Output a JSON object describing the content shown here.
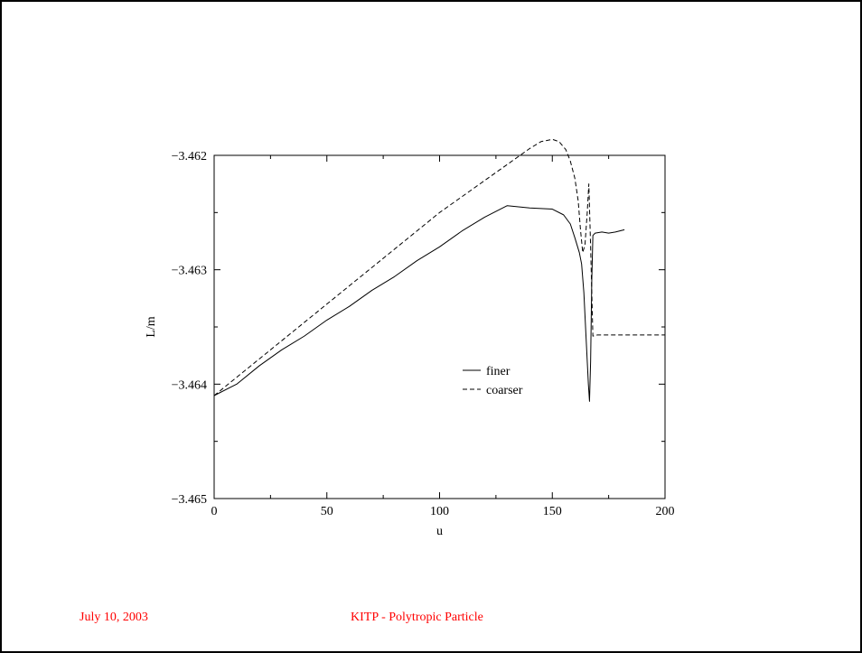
{
  "footer": {
    "date": "July 10, 2003",
    "title": "KITP - Polytropic Particle",
    "color": "#ff0000"
  },
  "chart_data": {
    "type": "line",
    "title": "",
    "xlabel": "u",
    "ylabel": "L/m",
    "xlim": [
      0,
      200
    ],
    "ylim": [
      -3.465,
      -3.462
    ],
    "x_ticks": [
      0,
      50,
      100,
      150,
      200
    ],
    "x_tick_labels": [
      "0",
      "50",
      "100",
      "150",
      "200"
    ],
    "y_ticks": [
      -3.465,
      -3.464,
      -3.463,
      -3.462
    ],
    "y_tick_labels": [
      "−3.465",
      "−3.464",
      "−3.463",
      "−3.462"
    ],
    "grid": false,
    "legend_position": "center",
    "series": [
      {
        "name": "finer",
        "style": "solid",
        "color": "#000000",
        "points": [
          [
            0,
            -3.4641
          ],
          [
            10,
            -3.464
          ],
          [
            20,
            -3.46384
          ],
          [
            30,
            -3.4637
          ],
          [
            40,
            -3.46358
          ],
          [
            50,
            -3.46344
          ],
          [
            60,
            -3.46332
          ],
          [
            70,
            -3.46318
          ],
          [
            80,
            -3.46306
          ],
          [
            90,
            -3.46292
          ],
          [
            100,
            -3.4628
          ],
          [
            110,
            -3.46266
          ],
          [
            120,
            -3.46254
          ],
          [
            130,
            -3.46244
          ],
          [
            140,
            -3.46246
          ],
          [
            150,
            -3.46247
          ],
          [
            155,
            -3.46252
          ],
          [
            158,
            -3.4626
          ],
          [
            160,
            -3.46272
          ],
          [
            162,
            -3.46285
          ],
          [
            163,
            -3.46295
          ],
          [
            164,
            -3.4632
          ],
          [
            165,
            -3.4636
          ],
          [
            166,
            -3.464
          ],
          [
            166.5,
            -3.46415
          ],
          [
            167,
            -3.4638
          ],
          [
            167.5,
            -3.4631
          ],
          [
            168,
            -3.4627
          ],
          [
            169,
            -3.46268
          ],
          [
            172,
            -3.46267
          ],
          [
            175,
            -3.46268
          ],
          [
            178,
            -3.46267
          ],
          [
            182,
            -3.46265
          ]
        ]
      },
      {
        "name": "coarser",
        "style": "dashed",
        "color": "#000000",
        "points": [
          [
            0,
            -3.4641
          ],
          [
            10,
            -3.46394
          ],
          [
            20,
            -3.46378
          ],
          [
            30,
            -3.46362
          ],
          [
            40,
            -3.46346
          ],
          [
            50,
            -3.4633
          ],
          [
            60,
            -3.46314
          ],
          [
            70,
            -3.46298
          ],
          [
            80,
            -3.46282
          ],
          [
            90,
            -3.46266
          ],
          [
            100,
            -3.4625
          ],
          [
            110,
            -3.46236
          ],
          [
            120,
            -3.46222
          ],
          [
            130,
            -3.46208
          ],
          [
            140,
            -3.46194
          ],
          [
            145,
            -3.46188
          ],
          [
            150,
            -3.46186
          ],
          [
            153,
            -3.46188
          ],
          [
            156,
            -3.46195
          ],
          [
            158,
            -3.46205
          ],
          [
            160,
            -3.4622
          ],
          [
            161.5,
            -3.4624
          ],
          [
            162.5,
            -3.46265
          ],
          [
            163.5,
            -3.46285
          ],
          [
            164.5,
            -3.46278
          ],
          [
            165.5,
            -3.4625
          ],
          [
            166.2,
            -3.46225
          ],
          [
            167,
            -3.4628
          ],
          [
            168,
            -3.46358
          ],
          [
            170,
            -3.46357
          ],
          [
            180,
            -3.46357
          ],
          [
            190,
            -3.46357
          ],
          [
            200,
            -3.46357
          ]
        ]
      }
    ]
  }
}
